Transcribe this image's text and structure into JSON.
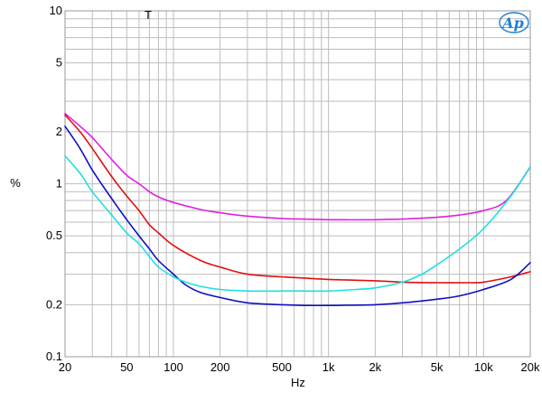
{
  "chart_data": {
    "type": "line",
    "title": "",
    "xlabel": "Hz",
    "ylabel": "%",
    "xscale": "log",
    "yscale": "log",
    "xlim": [
      20,
      20000
    ],
    "ylim": [
      0.1,
      10
    ],
    "grid": true,
    "legend": "none",
    "marker_text": "T",
    "logo_text": "Ap",
    "x_ticks": [
      {
        "value": 20,
        "label": "20"
      },
      {
        "value": 50,
        "label": "50"
      },
      {
        "value": 100,
        "label": "100"
      },
      {
        "value": 200,
        "label": "200"
      },
      {
        "value": 500,
        "label": "500"
      },
      {
        "value": 1000,
        "label": "1k"
      },
      {
        "value": 2000,
        "label": "2k"
      },
      {
        "value": 5000,
        "label": "5k"
      },
      {
        "value": 10000,
        "label": "10k"
      },
      {
        "value": 20000,
        "label": "20k"
      }
    ],
    "y_ticks": [
      {
        "value": 10,
        "label": "10"
      },
      {
        "value": 5,
        "label": "5"
      },
      {
        "value": 2,
        "label": "2"
      },
      {
        "value": 1,
        "label": "1"
      },
      {
        "value": 0.5,
        "label": "0.5"
      },
      {
        "value": 0.2,
        "label": "0.2"
      },
      {
        "value": 0.1,
        "label": "0.1"
      }
    ],
    "series": [
      {
        "color": "#e020e0",
        "x": [
          20,
          25,
          30,
          40,
          50,
          60,
          70,
          80,
          100,
          150,
          200,
          300,
          500,
          700,
          1000,
          2000,
          3000,
          5000,
          7000,
          10000,
          14000,
          20000
        ],
        "y": [
          2.55,
          2.15,
          1.85,
          1.38,
          1.12,
          1.0,
          0.9,
          0.84,
          0.78,
          0.71,
          0.68,
          0.65,
          0.63,
          0.625,
          0.62,
          0.62,
          0.625,
          0.64,
          0.66,
          0.7,
          0.8,
          1.25
        ]
      },
      {
        "color": "#e01010",
        "x": [
          20,
          25,
          30,
          40,
          50,
          60,
          70,
          80,
          100,
          150,
          200,
          300,
          500,
          1000,
          2000,
          3000,
          5000,
          8000,
          10000,
          15000,
          20000
        ],
        "y": [
          2.5,
          2.0,
          1.6,
          1.1,
          0.85,
          0.7,
          0.58,
          0.52,
          0.44,
          0.36,
          0.33,
          0.3,
          0.29,
          0.28,
          0.275,
          0.27,
          0.268,
          0.268,
          0.27,
          0.29,
          0.31
        ]
      },
      {
        "color": "#1010c0",
        "x": [
          20,
          25,
          30,
          40,
          50,
          60,
          70,
          80,
          100,
          120,
          150,
          200,
          300,
          500,
          700,
          1000,
          2000,
          3000,
          5000,
          7000,
          10000,
          15000,
          20000
        ],
        "y": [
          2.15,
          1.6,
          1.2,
          0.82,
          0.62,
          0.5,
          0.42,
          0.36,
          0.3,
          0.26,
          0.235,
          0.22,
          0.205,
          0.2,
          0.198,
          0.198,
          0.2,
          0.205,
          0.215,
          0.225,
          0.245,
          0.28,
          0.35
        ]
      },
      {
        "color": "#20e0e0",
        "x": [
          20,
          25,
          30,
          40,
          50,
          60,
          70,
          80,
          100,
          120,
          150,
          200,
          300,
          500,
          700,
          1000,
          1500,
          2000,
          3000,
          4000,
          5000,
          7000,
          10000,
          15000,
          20000
        ],
        "y": [
          1.45,
          1.15,
          0.9,
          0.66,
          0.52,
          0.45,
          0.38,
          0.33,
          0.29,
          0.27,
          0.255,
          0.245,
          0.24,
          0.24,
          0.24,
          0.24,
          0.245,
          0.25,
          0.27,
          0.3,
          0.34,
          0.42,
          0.55,
          0.85,
          1.25
        ]
      }
    ]
  }
}
